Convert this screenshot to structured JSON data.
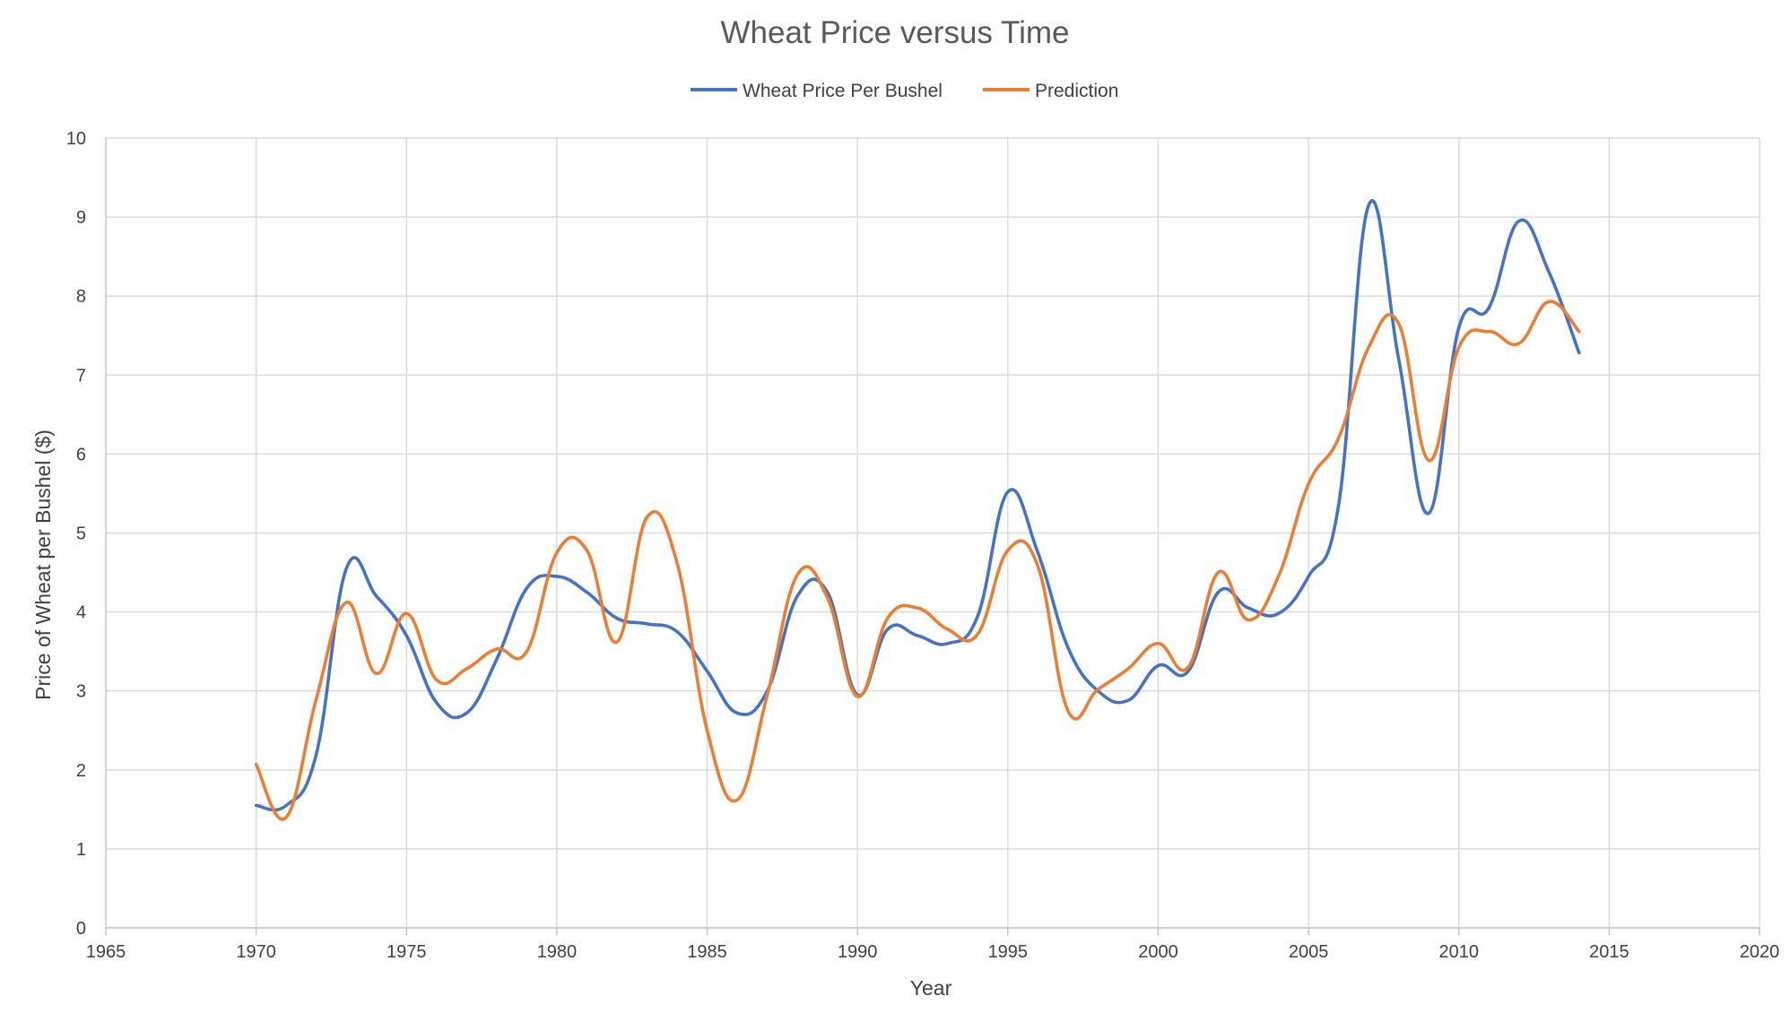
{
  "chart_data": {
    "type": "line",
    "title": "Wheat Price versus Time",
    "xlabel": "Year",
    "ylabel": "Price of Wheat per Bushel ($)",
    "xlim": [
      1965,
      2020
    ],
    "ylim": [
      0,
      10
    ],
    "xticks": [
      1965,
      1970,
      1975,
      1980,
      1985,
      1990,
      1995,
      2000,
      2005,
      2010,
      2015,
      2020
    ],
    "yticks": [
      0,
      1,
      2,
      3,
      4,
      5,
      6,
      7,
      8,
      9,
      10
    ],
    "grid": true,
    "legend_position": "top",
    "x": [
      1970,
      1971,
      1972,
      1973,
      1974,
      1975,
      1976,
      1977,
      1978,
      1979,
      1980,
      1981,
      1982,
      1983,
      1984,
      1985,
      1986,
      1987,
      1988,
      1989,
      1990,
      1991,
      1992,
      1993,
      1994,
      1995,
      1996,
      1997,
      1998,
      1999,
      2000,
      2001,
      2002,
      2003,
      2004,
      2005,
      2006,
      2007,
      2008,
      2009,
      2010,
      2011,
      2012,
      2013,
      2014
    ],
    "series": [
      {
        "name": "Wheat Price Per Bushel",
        "color": "#4472c4",
        "values": [
          1.55,
          1.55,
          2.2,
          4.55,
          4.2,
          3.7,
          2.85,
          2.72,
          3.4,
          4.3,
          4.45,
          4.25,
          3.92,
          3.85,
          3.75,
          3.25,
          2.72,
          3.0,
          4.2,
          4.25,
          2.95,
          3.78,
          3.7,
          3.6,
          3.95,
          5.52,
          4.75,
          3.55,
          3.0,
          2.88,
          3.32,
          3.25,
          4.25,
          4.05,
          3.98,
          4.45,
          5.35,
          9.15,
          7.2,
          5.25,
          7.6,
          7.85,
          8.95,
          8.3,
          7.28
        ]
      },
      {
        "name": "Prediction",
        "color": "#ed7d31",
        "values": [
          2.07,
          1.4,
          2.9,
          4.12,
          3.22,
          3.98,
          3.14,
          3.28,
          3.53,
          3.5,
          4.75,
          4.78,
          3.62,
          5.2,
          4.62,
          2.5,
          1.62,
          2.95,
          4.47,
          4.18,
          2.93,
          3.92,
          4.05,
          3.78,
          3.72,
          4.78,
          4.58,
          2.75,
          3.02,
          3.28,
          3.6,
          3.3,
          4.5,
          3.9,
          4.45,
          5.62,
          6.2,
          7.35,
          7.65,
          5.92,
          7.35,
          7.55,
          7.4,
          7.93,
          7.55
        ]
      }
    ]
  }
}
